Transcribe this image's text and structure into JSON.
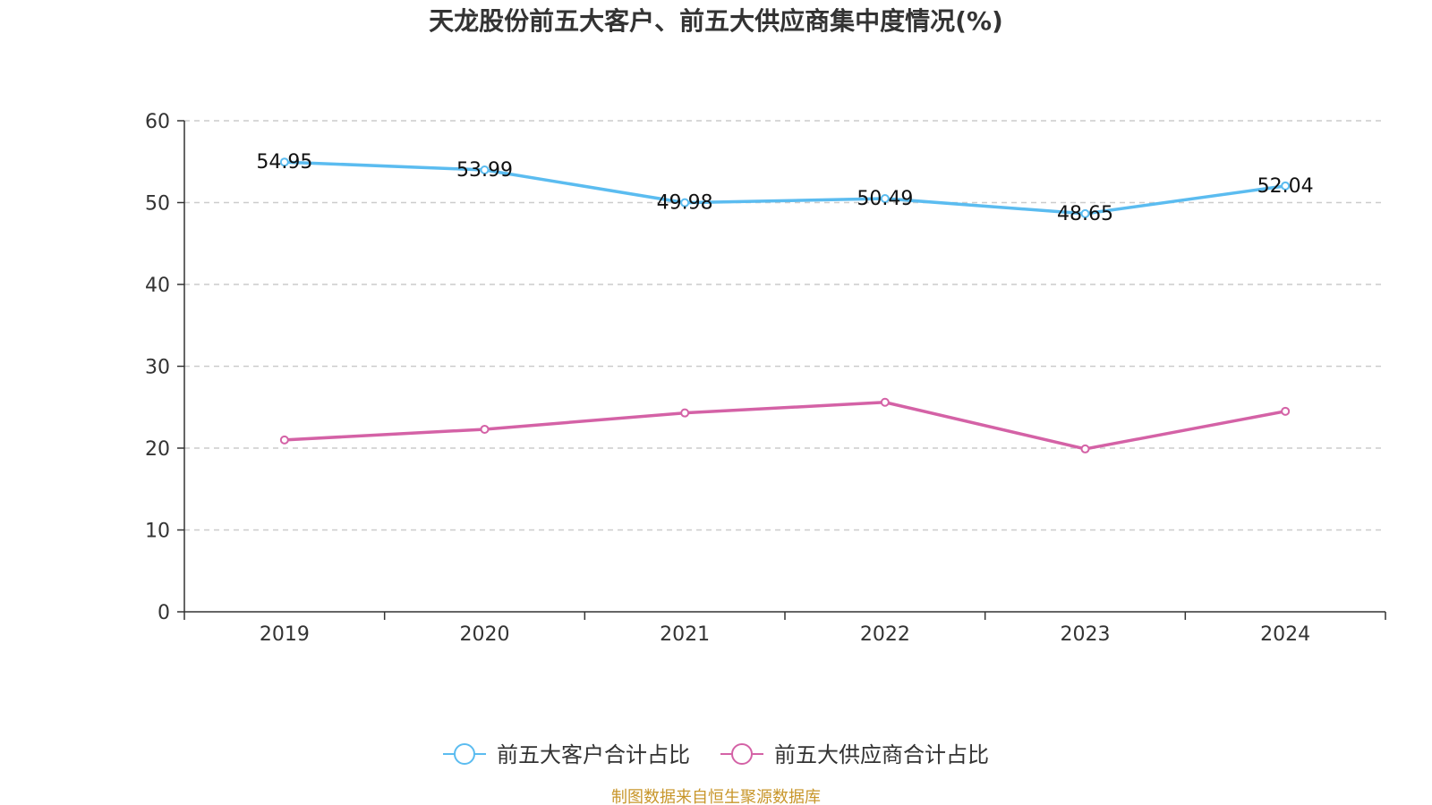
{
  "chart_data": {
    "type": "line",
    "title": "天龙股份前五大客户、前五大供应商集中度情况(%)",
    "categories": [
      "2019",
      "2020",
      "2021",
      "2022",
      "2023",
      "2024"
    ],
    "ylim": [
      0,
      60
    ],
    "yticks": [
      0,
      10,
      20,
      30,
      40,
      50,
      60
    ],
    "grid": "horizontal-dashed",
    "legend_position": "bottom",
    "series": [
      {
        "name": "前五大客户合计占比",
        "color": "#5bbcf0",
        "values": [
          54.95,
          53.99,
          49.98,
          50.49,
          48.65,
          52.04
        ],
        "labels": [
          "54.95",
          "53.99",
          "49.98",
          "50.49",
          "48.65",
          "52.04"
        ],
        "show_labels": true
      },
      {
        "name": "前五大供应商合计占比",
        "color": "#d462a6",
        "values": [
          21.0,
          22.3,
          24.3,
          25.6,
          19.9,
          24.5
        ],
        "show_labels": false
      }
    ]
  },
  "source": {
    "text": "制图数据来自恒生聚源数据库",
    "color": "#c8962b"
  }
}
